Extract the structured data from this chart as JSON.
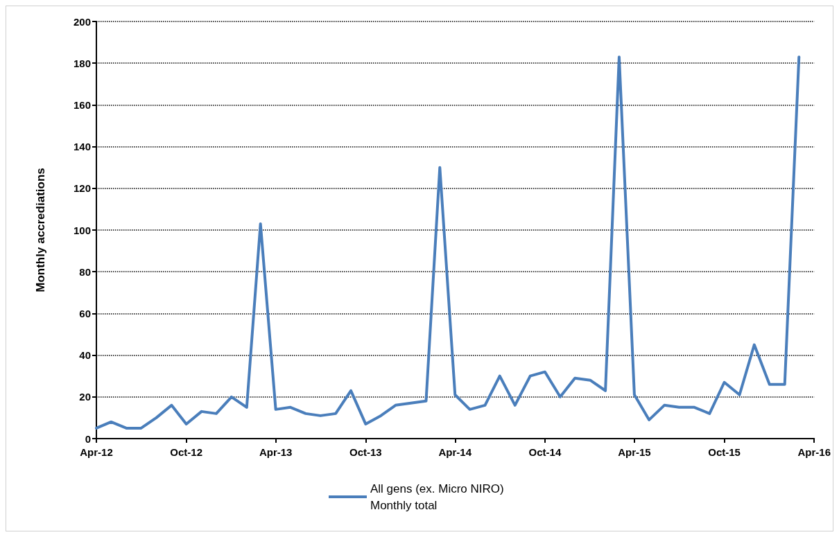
{
  "chart_data": {
    "type": "line",
    "ylabel": "Monthly accrediations",
    "x": [
      "2012-04",
      "2012-05",
      "2012-06",
      "2012-07",
      "2012-08",
      "2012-09",
      "2012-10",
      "2012-11",
      "2012-12",
      "2013-01",
      "2013-02",
      "2013-03",
      "2013-04",
      "2013-05",
      "2013-06",
      "2013-07",
      "2013-08",
      "2013-09",
      "2013-10",
      "2013-11",
      "2013-12",
      "2014-01",
      "2014-02",
      "2014-03",
      "2014-04",
      "2014-05",
      "2014-06",
      "2014-07",
      "2014-08",
      "2014-09",
      "2014-10",
      "2014-11",
      "2014-12",
      "2015-01",
      "2015-02",
      "2015-03",
      "2015-04",
      "2015-05",
      "2015-06",
      "2015-07",
      "2015-08",
      "2015-09",
      "2015-10",
      "2015-11",
      "2015-12",
      "2016-01",
      "2016-02",
      "2016-03"
    ],
    "series": [
      {
        "name": "All gens (ex. Micro NIRO)\nMonthly total",
        "color": "#4a7ebb",
        "values": [
          5,
          8,
          5,
          5,
          10,
          16,
          7,
          13,
          12,
          20,
          15,
          103,
          14,
          15,
          12,
          11,
          12,
          23,
          7,
          11,
          16,
          17,
          18,
          130,
          21,
          14,
          16,
          30,
          16,
          30,
          32,
          20,
          29,
          28,
          23,
          183,
          21,
          9,
          16,
          15,
          15,
          12,
          27,
          21,
          45,
          26,
          26,
          183
        ]
      }
    ],
    "xlim": [
      "2012-04",
      "2016-04"
    ],
    "xticks": [
      {
        "value": "2012-04",
        "label": "Apr-12"
      },
      {
        "value": "2012-10",
        "label": "Oct-12"
      },
      {
        "value": "2013-04",
        "label": "Apr-13"
      },
      {
        "value": "2013-10",
        "label": "Oct-13"
      },
      {
        "value": "2014-04",
        "label": "Apr-14"
      },
      {
        "value": "2014-10",
        "label": "Oct-14"
      },
      {
        "value": "2015-04",
        "label": "Apr-15"
      },
      {
        "value": "2015-10",
        "label": "Oct-15"
      },
      {
        "value": "2016-04",
        "label": "Apr-16"
      }
    ],
    "ylim": [
      0,
      200
    ],
    "yticks": [
      0,
      20,
      40,
      60,
      80,
      100,
      120,
      140,
      160,
      180,
      200
    ],
    "grid": "y",
    "legend": "bottom",
    "marker": "none",
    "line_style": "solid"
  }
}
